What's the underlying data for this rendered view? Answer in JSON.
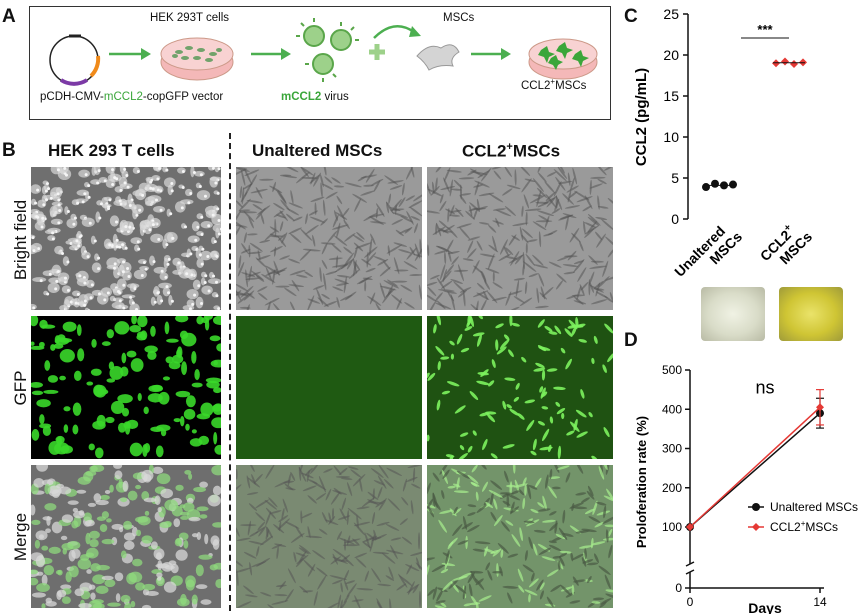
{
  "panel_labels": {
    "a": "A",
    "b": "B",
    "c": "C",
    "d": "D"
  },
  "schematic": {
    "vector_label_pre": "pCDH-CMV-",
    "vector_label_green": "mCCL2",
    "vector_label_post": "-copGFP vector",
    "hek_label": "HEK 293T cells",
    "virus_label_green": "mCCL2",
    "virus_label_post": " virus",
    "mscs_label": "MSCs",
    "plus_sign": "+",
    "ccl2_mscs_base": "CCL2",
    "ccl2_mscs_sup": "+",
    "ccl2_mscs_post": "MSCs",
    "colors": {
      "arrow": "#4caf50",
      "virus": "#5aa64a",
      "dish": "#f4b8b8",
      "cell": "#3aa63a"
    }
  },
  "panel_b": {
    "columns": [
      {
        "label": "HEK 293 T cells"
      },
      {
        "label": "Unaltered MSCs"
      },
      {
        "label_base": "CCL2",
        "label_sup": "+",
        "label_post": "MSCs"
      }
    ],
    "rows": [
      "Bright field",
      "GFP",
      "Merge"
    ]
  },
  "panel_c": {
    "chart_data": {
      "type": "scatter",
      "ylabel": "CCL2 (pg/mL)",
      "ylim": [
        0,
        25
      ],
      "yticks": [
        "0",
        "5",
        "10",
        "15",
        "20",
        "25"
      ],
      "categories": [
        {
          "label_line1": "Unaltered",
          "label_line2": "MSCs"
        },
        {
          "label_line1_base": "CCL2",
          "label_line1_sup": "+",
          "label_line2": "MSCs"
        }
      ],
      "series": [
        {
          "category": 0,
          "color": "#111111",
          "values": [
            3.9,
            4.3,
            4.1,
            4.2
          ],
          "mean": 4.1
        },
        {
          "category": 1,
          "color": "#e53935",
          "values": [
            19.0,
            19.2,
            18.9,
            19.1
          ],
          "mean": 19.05
        }
      ],
      "significance": "***"
    },
    "tube_colors": [
      "#dfe3cf",
      "#d9d23c"
    ]
  },
  "panel_d": {
    "chart_data": {
      "type": "line",
      "xlabel": "Days",
      "ylabel": "Proloferation rate (%)",
      "x": [
        0,
        14
      ],
      "xticks": [
        "0",
        "14"
      ],
      "ylim": [
        0,
        500
      ],
      "yticks": [
        "0",
        "100",
        "200",
        "300",
        "400",
        "500"
      ],
      "annotation": "ns",
      "legend_position": "lower-right",
      "series": [
        {
          "name": "Unaltered MSCs",
          "color": "#111111",
          "marker": "circle",
          "values": [
            100,
            390
          ],
          "err": [
            0,
            38
          ]
        },
        {
          "name_base": "CCL2",
          "name_sup": "+",
          "name_post": "MSCs",
          "color": "#e53935",
          "marker": "diamond",
          "values": [
            100,
            405
          ],
          "err": [
            0,
            45
          ]
        }
      ]
    }
  }
}
